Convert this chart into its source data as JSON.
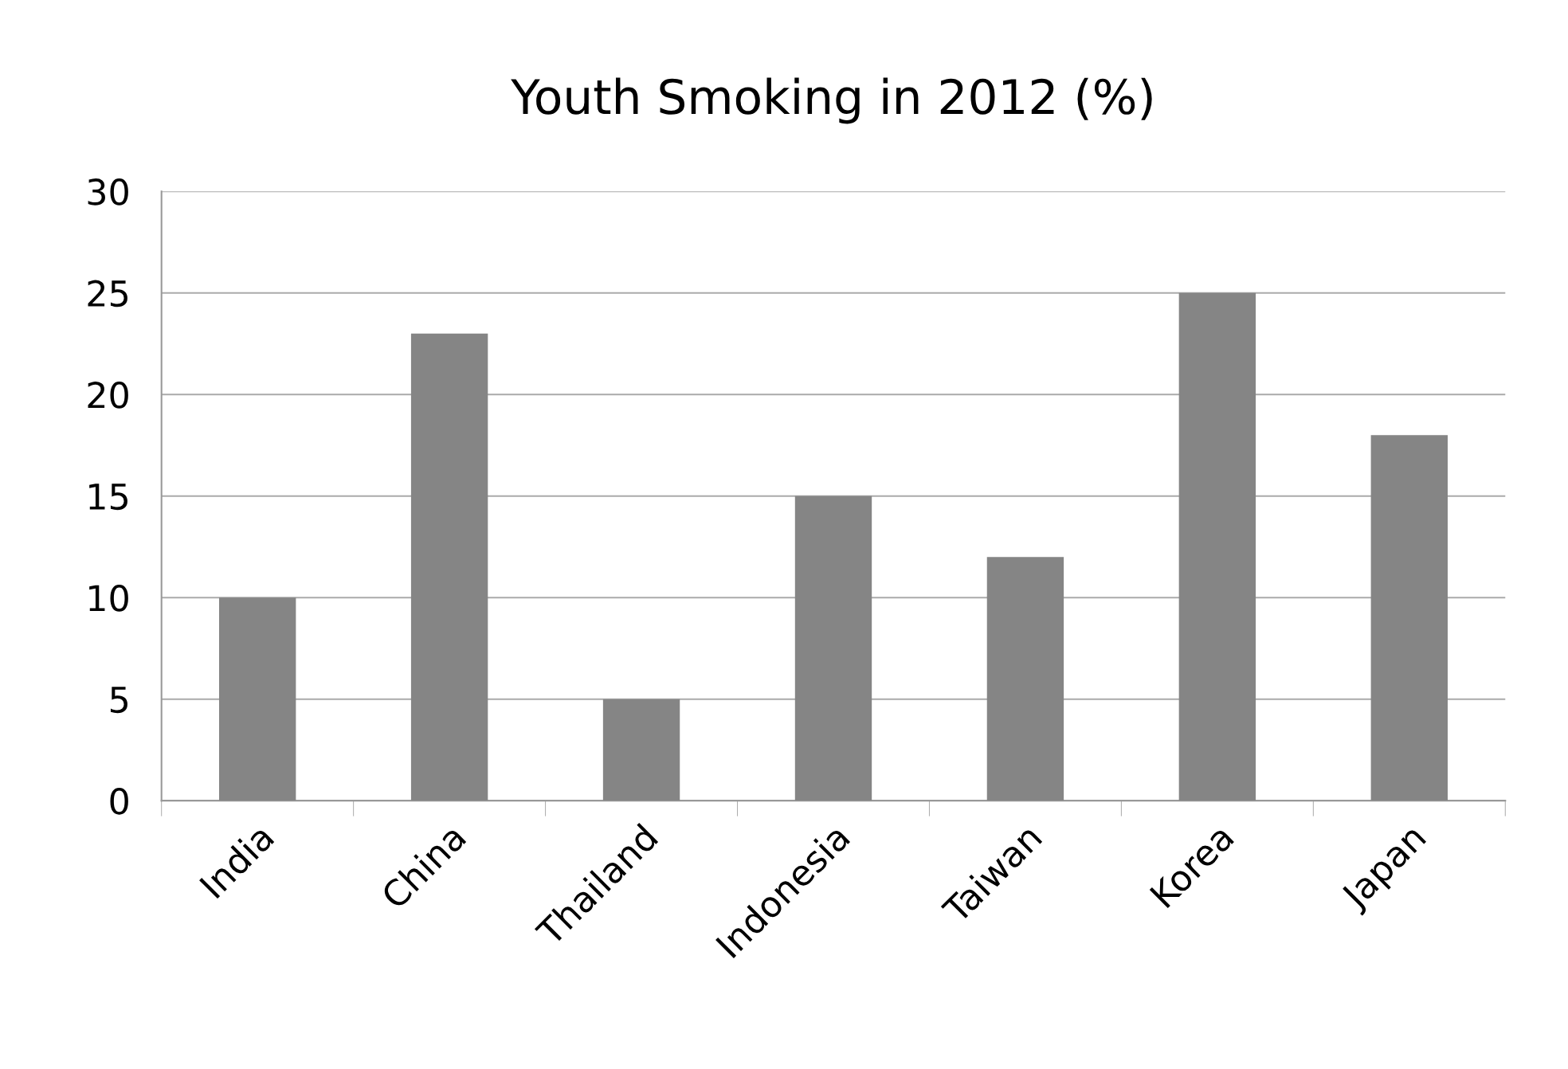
{
  "chart_data": {
    "type": "bar",
    "title": "Youth Smoking in 2012 (%)",
    "categories": [
      "India",
      "China",
      "Thailand",
      "Indonesia",
      "Taiwan",
      "Korea",
      "Japan"
    ],
    "values": [
      10,
      23,
      5,
      15,
      12,
      25,
      18
    ],
    "color": "#858585",
    "ylim": [
      0,
      30
    ],
    "yticks": [
      0,
      5,
      10,
      15,
      20,
      25,
      30
    ],
    "grid": "y"
  }
}
